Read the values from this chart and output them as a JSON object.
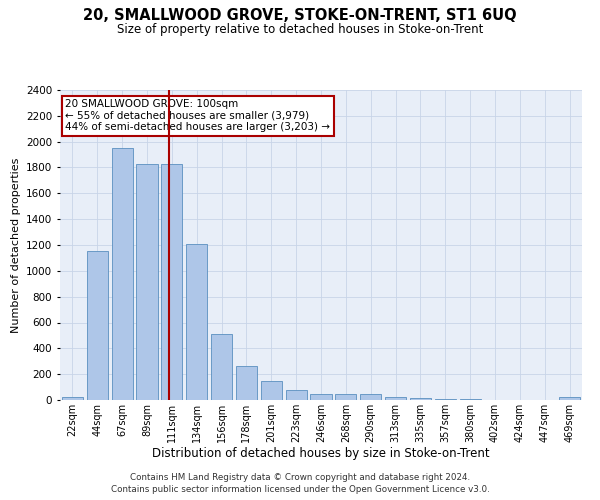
{
  "title": "20, SMALLWOOD GROVE, STOKE-ON-TRENT, ST1 6UQ",
  "subtitle": "Size of property relative to detached houses in Stoke-on-Trent",
  "xlabel": "Distribution of detached houses by size in Stoke-on-Trent",
  "ylabel": "Number of detached properties",
  "bar_labels": [
    "22sqm",
    "44sqm",
    "67sqm",
    "89sqm",
    "111sqm",
    "134sqm",
    "156sqm",
    "178sqm",
    "201sqm",
    "223sqm",
    "246sqm",
    "268sqm",
    "290sqm",
    "313sqm",
    "335sqm",
    "357sqm",
    "380sqm",
    "402sqm",
    "424sqm",
    "447sqm",
    "469sqm"
  ],
  "bar_values": [
    25,
    1150,
    1950,
    1825,
    1825,
    1210,
    510,
    265,
    150,
    80,
    50,
    45,
    45,
    20,
    15,
    10,
    5,
    0,
    0,
    0,
    20
  ],
  "bar_color": "#aec6e8",
  "bar_edge_color": "#5a8fc0",
  "ylim": [
    0,
    2400
  ],
  "yticks": [
    0,
    200,
    400,
    600,
    800,
    1000,
    1200,
    1400,
    1600,
    1800,
    2000,
    2200,
    2400
  ],
  "vline_x_index": 3.88,
  "vline_color": "#aa0000",
  "annotation_text": "20 SMALLWOOD GROVE: 100sqm\n← 55% of detached houses are smaller (3,979)\n44% of semi-detached houses are larger (3,203) →",
  "annotation_box_color": "#ffffff",
  "annotation_box_edge_color": "#aa0000",
  "footer_line1": "Contains HM Land Registry data © Crown copyright and database right 2024.",
  "footer_line2": "Contains public sector information licensed under the Open Government Licence v3.0.",
  "grid_color": "#c8d4e8",
  "plot_bg_color": "#e8eef8"
}
